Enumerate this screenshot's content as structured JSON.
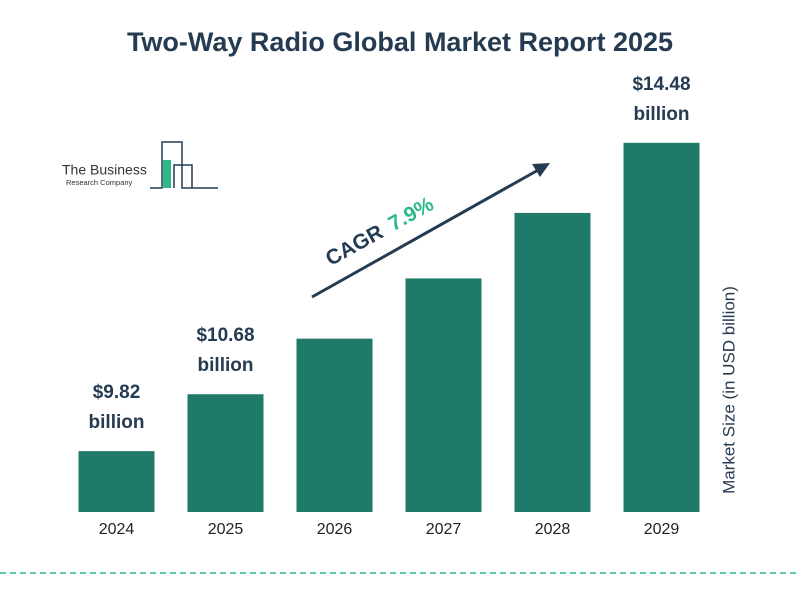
{
  "chart_data": {
    "type": "bar",
    "title": "Two-Way Radio Global Market Report 2025",
    "categories": [
      "2024",
      "2025",
      "2026",
      "2027",
      "2028",
      "2029"
    ],
    "values": [
      9.82,
      10.68,
      11.52,
      12.43,
      13.42,
      14.48
    ],
    "value_labels": [
      "$9.82 billion",
      "$10.68 billion",
      null,
      null,
      null,
      "$14.48 billion"
    ],
    "color": "#1f7a6a",
    "ylim": [
      8.9,
      14.9
    ],
    "y_label": "Market Size (in USD billion)",
    "annotation": {
      "label": "CAGR",
      "value": "7.9%"
    },
    "logo": {
      "line1": "The Business",
      "line2": "Research Company"
    }
  }
}
